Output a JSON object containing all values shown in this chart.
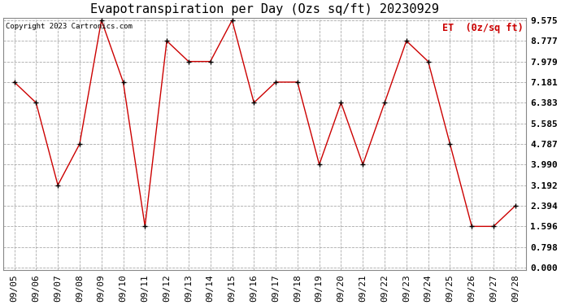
{
  "title": "Evapotranspiration per Day (Ozs sq/ft) 20230929",
  "legend_label": "ET  (0z/sq ft)",
  "copyright": "Copyright 2023 Cartronics.com",
  "dates": [
    "09/05",
    "09/06",
    "09/07",
    "09/08",
    "09/09",
    "09/10",
    "09/11",
    "09/12",
    "09/13",
    "09/14",
    "09/15",
    "09/16",
    "09/17",
    "09/18",
    "09/19",
    "09/20",
    "09/21",
    "09/22",
    "09/23",
    "09/24",
    "09/25",
    "09/26",
    "09/27",
    "09/28"
  ],
  "values": [
    7.181,
    6.383,
    3.192,
    4.787,
    9.575,
    7.181,
    1.596,
    8.777,
    7.979,
    7.979,
    9.575,
    6.383,
    7.181,
    7.181,
    3.99,
    6.383,
    3.99,
    6.383,
    8.777,
    7.979,
    4.787,
    1.596,
    1.596,
    2.394
  ],
  "line_color": "#cc0000",
  "marker_color": "#000000",
  "background_color": "#ffffff",
  "grid_color": "#aaaaaa",
  "title_fontsize": 11,
  "tick_fontsize": 8,
  "legend_color": "#cc0000",
  "copyright_color": "#000000",
  "yticks": [
    0.0,
    0.798,
    1.596,
    2.394,
    3.192,
    3.99,
    4.787,
    5.585,
    6.383,
    7.181,
    7.979,
    8.777,
    9.575
  ],
  "ymin": 0.0,
  "ymax": 9.575
}
